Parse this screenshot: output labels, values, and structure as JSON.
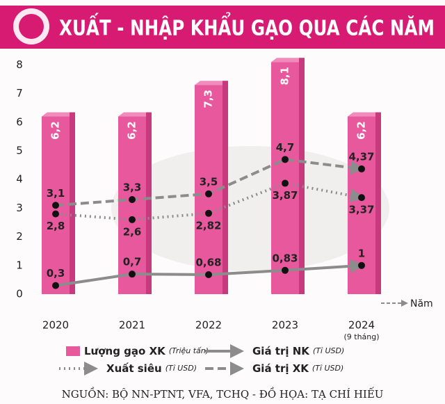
{
  "chart_data": {
    "type": "bar",
    "title": "XUẤT - NHẬP KHẨU GẠO QUA CÁC NĂM",
    "categories": [
      "2020",
      "2021",
      "2022",
      "2023",
      "2024"
    ],
    "x_annotation": {
      "index": 4,
      "text": "(9 tháng)"
    },
    "x_label": "Năm",
    "ylim": [
      0,
      8.3
    ],
    "yticks": [
      0,
      1,
      2,
      3,
      4,
      5,
      6,
      7,
      8
    ],
    "series": [
      {
        "name": "Lượng gạo XK",
        "unit": "(Triệu tấn)",
        "type": "bar",
        "color": "#e8589c",
        "values": [
          6.2,
          6.2,
          7.3,
          8.1,
          6.2
        ],
        "value_labels": [
          "6,2",
          "6,2",
          "7,3",
          "8,1",
          "6,2"
        ]
      },
      {
        "name": "Giá trị NK",
        "unit": "(Tỉ USD)",
        "type": "line",
        "style": "solid",
        "color": "#8c8c8c",
        "label_side": "above",
        "values": [
          0.3,
          0.7,
          0.68,
          0.83,
          1
        ],
        "value_labels": [
          "0,3",
          "0,7",
          "0,68",
          "0,83",
          "1"
        ]
      },
      {
        "name": "Xuất siêu",
        "unit": "(Tỉ USD)",
        "type": "line",
        "style": "dotted",
        "color": "#8c8c8c",
        "label_side": "below",
        "values": [
          2.8,
          2.6,
          2.82,
          3.87,
          3.37
        ],
        "value_labels": [
          "2,8",
          "2,6",
          "2,82",
          "3,87",
          "3,37"
        ]
      },
      {
        "name": "Giá trị XK",
        "unit": "(Tỉ USD)",
        "type": "line",
        "style": "dashed",
        "color": "#8c8c8c",
        "label_side": "above",
        "values": [
          3.1,
          3.3,
          3.5,
          4.7,
          4.37
        ],
        "value_labels": [
          "3,1",
          "3,3",
          "3,5",
          "4,7",
          "4,37"
        ]
      }
    ],
    "source": "NGUỒN: BỘ NN-PTNT, VFA, TCHQ - ĐỒ HỌA: TẠ CHÍ HIẾU"
  }
}
